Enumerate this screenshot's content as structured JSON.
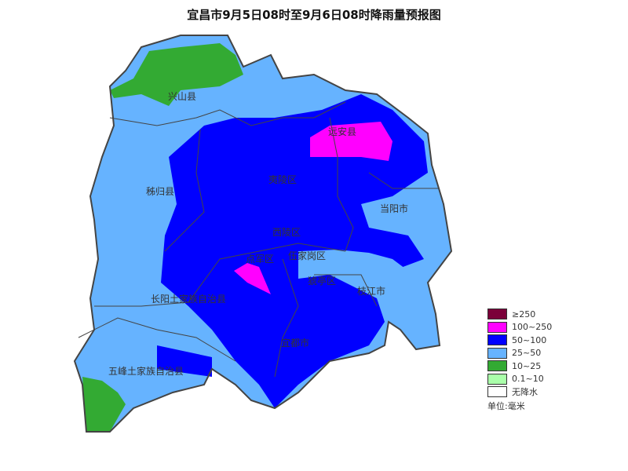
{
  "title": "宜昌市9月5日08时至9月6日08时降雨量预报图",
  "regions": [
    {
      "name": "兴山县"
    },
    {
      "name": "远安县"
    },
    {
      "name": "秭归县"
    },
    {
      "name": "夷陵区"
    },
    {
      "name": "当阳市"
    },
    {
      "name": "西陵区"
    },
    {
      "name": "点军区"
    },
    {
      "name": "伍家岗区"
    },
    {
      "name": "猇亭区"
    },
    {
      "name": "枝江市"
    },
    {
      "name": "长阳土家族自治县"
    },
    {
      "name": "宜都市"
    },
    {
      "name": "五峰土家族自治县"
    }
  ],
  "legend": {
    "items": [
      {
        "label": "≥250",
        "color": "#7b0039"
      },
      {
        "label": "100~250",
        "color": "#ff00ff"
      },
      {
        "label": "50~100",
        "color": "#0000ff"
      },
      {
        "label": "25~50",
        "color": "#66b3ff"
      },
      {
        "label": "10~25",
        "color": "#33aa33"
      },
      {
        "label": "0.1~10",
        "color": "#aaffaa"
      },
      {
        "label": "无降水",
        "color": "#ffffff"
      }
    ],
    "unit": "单位:毫米"
  }
}
